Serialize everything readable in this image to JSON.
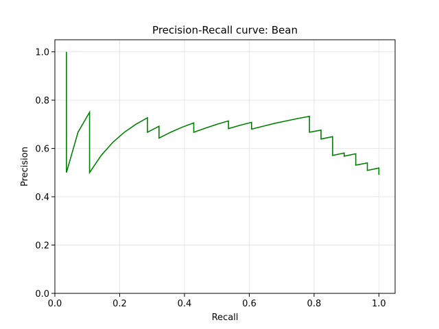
{
  "chart_data": {
    "type": "line",
    "title": "Precision-Recall curve: Bean",
    "xlabel": "Recall",
    "ylabel": "Precision",
    "xlim": [
      0.0,
      1.05
    ],
    "ylim": [
      0.0,
      1.05
    ],
    "x_ticks": [
      "0.0",
      "0.2",
      "0.4",
      "0.6",
      "0.8",
      "1.0"
    ],
    "y_ticks": [
      "0.0",
      "0.2",
      "0.4",
      "0.6",
      "0.8",
      "1.0"
    ],
    "grid": true,
    "legend": "none",
    "colors": {
      "line": "#008000",
      "grid": "#e6e6e6",
      "frame": "#000000"
    },
    "series": [
      {
        "x": [
          0.0357,
          0.0357,
          0.0357,
          0.0714,
          0.1071,
          0.1071,
          0.1429,
          0.1786,
          0.2143,
          0.25,
          0.2857,
          0.2857,
          0.3214,
          0.3214,
          0.3571,
          0.3929,
          0.4286,
          0.4286,
          0.4643,
          0.5,
          0.5357,
          0.5357,
          0.5714,
          0.6071,
          0.6071,
          0.6429,
          0.6786,
          0.7143,
          0.75,
          0.7857,
          0.7857,
          0.8214,
          0.8214,
          0.8571,
          0.8571,
          0.8929,
          0.8929,
          0.9286,
          0.9286,
          0.9643,
          0.9643,
          1.0,
          1.0
        ],
        "y": [
          1.0,
          0.5,
          0.5,
          0.667,
          0.75,
          0.5,
          0.571,
          0.625,
          0.667,
          0.7,
          0.727,
          0.667,
          0.692,
          0.643,
          0.667,
          0.688,
          0.706,
          0.667,
          0.684,
          0.7,
          0.714,
          0.682,
          0.696,
          0.708,
          0.68,
          0.692,
          0.704,
          0.714,
          0.724,
          0.733,
          0.667,
          0.676,
          0.639,
          0.649,
          0.571,
          0.581,
          0.568,
          0.578,
          0.531,
          0.54,
          0.509,
          0.519,
          0.491
        ]
      }
    ]
  }
}
